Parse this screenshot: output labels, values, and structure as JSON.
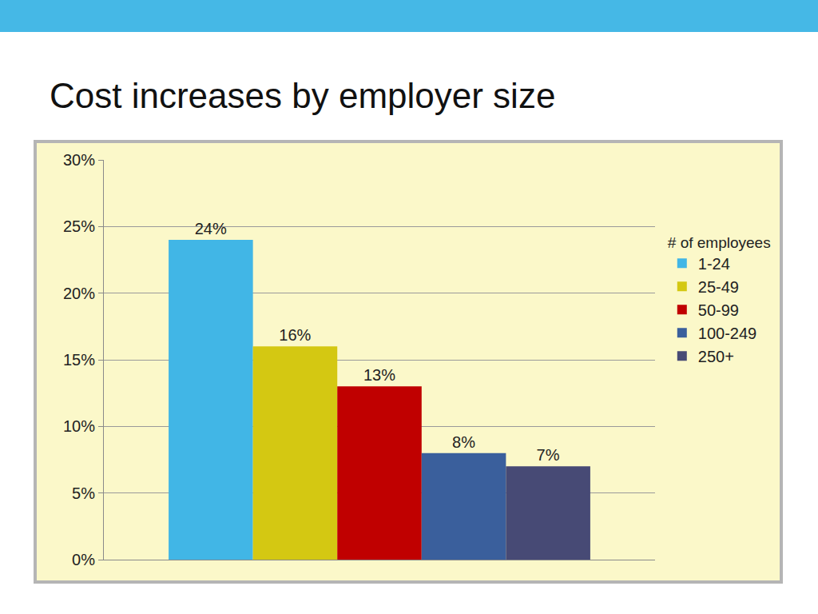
{
  "chart_data": {
    "type": "bar",
    "title": "Cost increases by employer size",
    "legend_title": "# of employees",
    "categories": [
      null
    ],
    "series": [
      {
        "name": "1-24",
        "color": "#41b6e6",
        "values": [
          24
        ],
        "value_labels": [
          "24%"
        ]
      },
      {
        "name": "25-49",
        "color": "#d4c812",
        "values": [
          16
        ],
        "value_labels": [
          "16%"
        ]
      },
      {
        "name": "50-99",
        "color": "#c00000",
        "values": [
          13
        ],
        "value_labels": [
          "13%"
        ]
      },
      {
        "name": "100-249",
        "color": "#3a5f9c",
        "values": [
          8
        ],
        "value_labels": [
          "8%"
        ]
      },
      {
        "name": "250+",
        "color": "#474a75",
        "values": [
          7
        ],
        "value_labels": [
          "7%"
        ]
      }
    ],
    "ylim": [
      0,
      30
    ],
    "yticks": [
      {
        "value": 0,
        "label": "0%"
      },
      {
        "value": 5,
        "label": "5%"
      },
      {
        "value": 10,
        "label": "10%"
      },
      {
        "value": 15,
        "label": "15%"
      },
      {
        "value": 20,
        "label": "20%"
      },
      {
        "value": 25,
        "label": "25%"
      },
      {
        "value": 30,
        "label": "30%"
      }
    ],
    "grid": true,
    "legend": "right",
    "data_labels": true,
    "tick_labels": "y"
  }
}
